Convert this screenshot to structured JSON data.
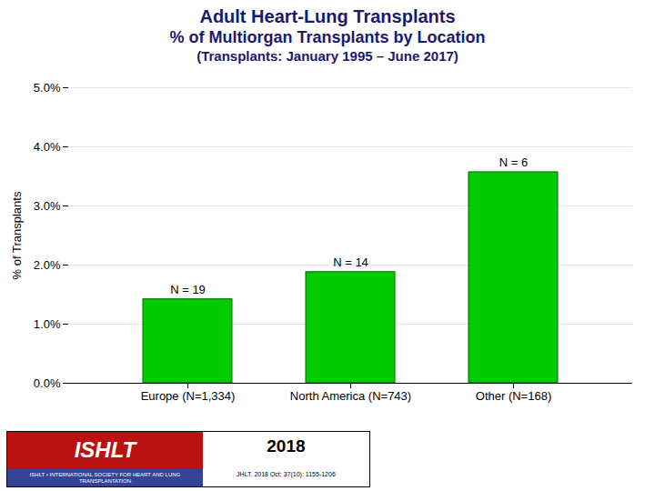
{
  "chart_data": {
    "type": "bar",
    "title": "Adult Heart-Lung Transplants",
    "subtitle": [
      "% of Multiorgan Transplants by Location",
      "(Transplants: January 1995 – June 2017)"
    ],
    "categories": [
      "Europe (N=1,334)",
      "North America (N=743)",
      "Other (N=168)"
    ],
    "values": [
      0.0142,
      0.0188,
      0.0357
    ],
    "annotations": [
      "N = 19",
      "N = 14",
      "N = 6"
    ],
    "color": "#00CC00",
    "ylabel": "% of Transplants",
    "ylim": [
      0.0,
      0.05
    ],
    "yticks": [
      {
        "value": 0.0,
        "label": "0.0%"
      },
      {
        "value": 0.01,
        "label": "1.0%"
      },
      {
        "value": 0.02,
        "label": "2.0%"
      },
      {
        "value": 0.03,
        "label": "3.0%"
      },
      {
        "value": 0.04,
        "label": "4.0%"
      },
      {
        "value": 0.05,
        "label": "5.0%"
      }
    ],
    "grid": true,
    "caption": [
      "ISHLT",
      "ISHLT • INTERNATIONAL SOCIETY FOR HEART AND LUNG TRANSPLANTATION",
      "2018",
      "JHLT. 2018 Oct; 37(10): 1155-1206"
    ]
  }
}
